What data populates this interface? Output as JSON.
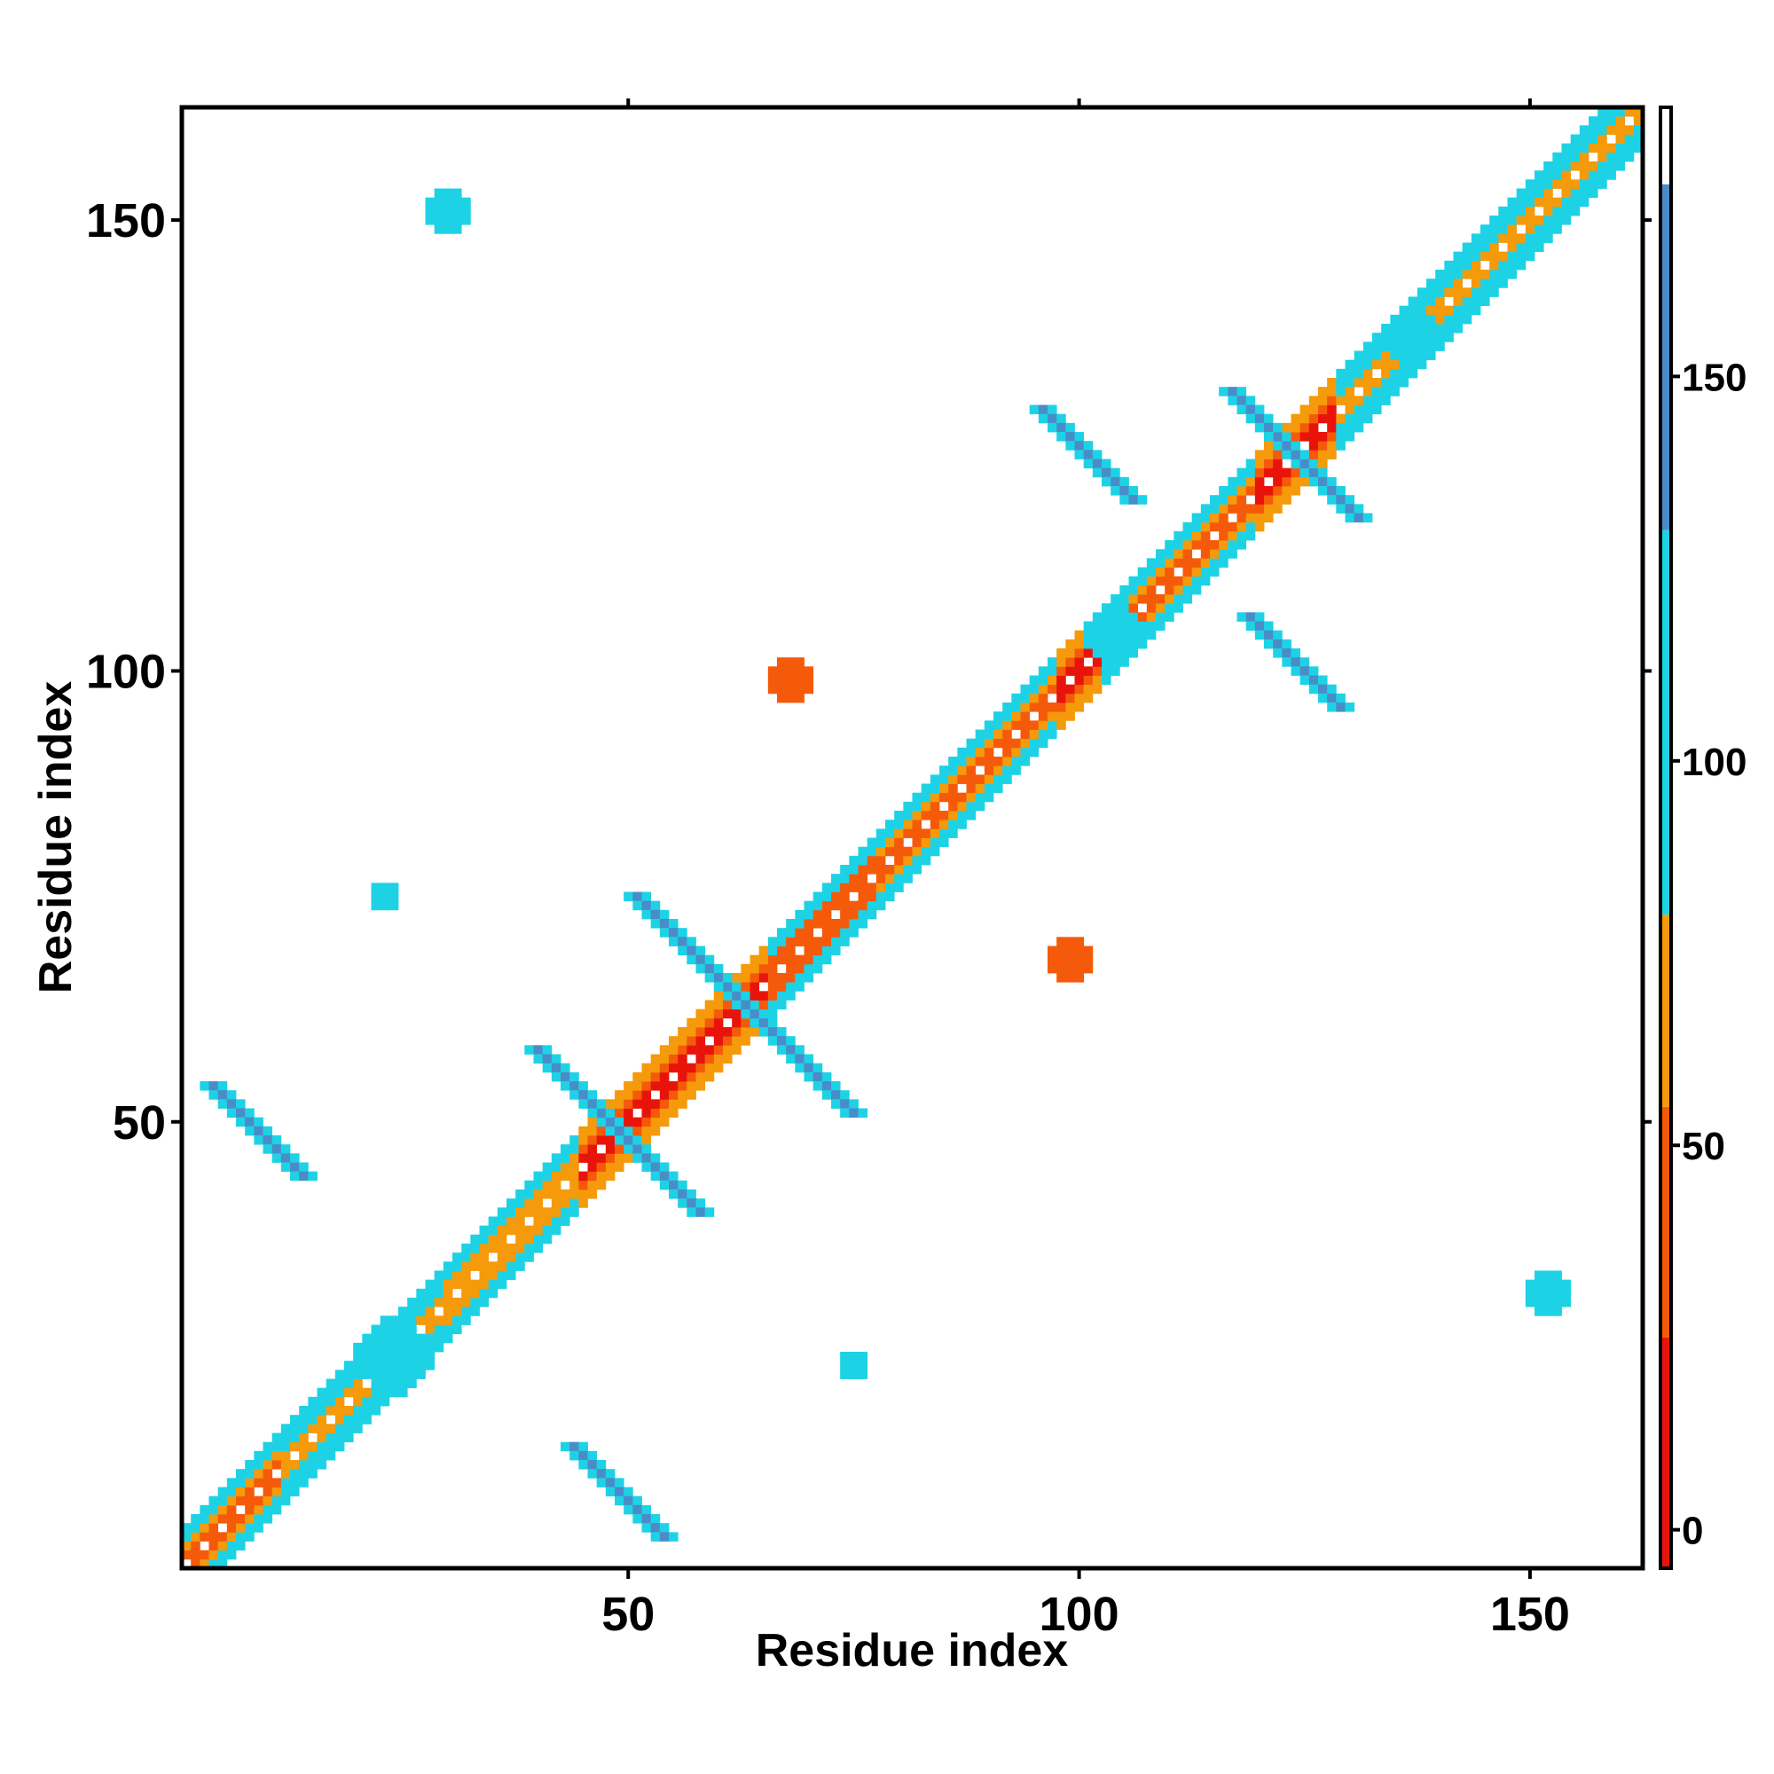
{
  "chart_data": {
    "type": "heatmap",
    "xlabel": "Residue index",
    "ylabel": "Residue index",
    "xlim": [
      1,
      162
    ],
    "ylim": [
      1,
      162
    ],
    "x_ticks": [
      50,
      100,
      150
    ],
    "y_ticks": [
      50,
      100,
      150
    ],
    "grid": false,
    "colorbar": {
      "position": "right",
      "range": [
        -5,
        185
      ],
      "ticks": [
        0,
        50,
        100,
        150
      ],
      "bands": [
        {
          "from": -5,
          "to": 25,
          "color": "#e8140c"
        },
        {
          "from": 25,
          "to": 55,
          "color": "#f55a0a"
        },
        {
          "from": 55,
          "to": 80,
          "color": "#f59a0a"
        },
        {
          "from": 80,
          "to": 130,
          "color": "#1ed2e6"
        },
        {
          "from": 130,
          "to": 175,
          "color": "#4a8cc8"
        },
        {
          "from": 175,
          "to": 185,
          "color": "#ffffff"
        }
      ]
    },
    "regions": [
      {
        "kind": "diagonal_helix",
        "from": 1,
        "to": 12,
        "value": 40
      },
      {
        "kind": "diagonal_helix",
        "from": 12,
        "to": 30,
        "value": 60
      },
      {
        "kind": "diagonal_helix",
        "from": 30,
        "to": 45,
        "value": 55
      },
      {
        "kind": "diagonal_helix",
        "from": 45,
        "to": 66,
        "value": 15
      },
      {
        "kind": "diagonal_helix",
        "from": 66,
        "to": 78,
        "value": 30
      },
      {
        "kind": "diagonal_helix",
        "from": 78,
        "to": 98,
        "value": 45
      },
      {
        "kind": "diagonal_helix",
        "from": 98,
        "to": 103,
        "value": 15
      },
      {
        "kind": "diagonal_helix",
        "from": 103,
        "to": 120,
        "value": 50
      },
      {
        "kind": "diagonal_helix",
        "from": 120,
        "to": 129,
        "value": 10
      },
      {
        "kind": "diagonal_helix",
        "from": 129,
        "to": 162,
        "value": 60
      },
      {
        "kind": "anti_strand",
        "cx": 49,
        "cy": 49,
        "half": 9,
        "value": 155
      },
      {
        "kind": "anti_strand",
        "cx": 63,
        "cy": 63,
        "half": 12,
        "value": 155
      },
      {
        "kind": "anti_strand",
        "cx": 124,
        "cy": 124,
        "half": 7,
        "value": 155
      },
      {
        "kind": "anti_strand",
        "cx": 9,
        "cy": 49,
        "half": 5,
        "value": 150
      },
      {
        "kind": "anti_strand",
        "cx": 49,
        "cy": 9,
        "half": 5,
        "value": 150
      },
      {
        "kind": "anti_strand",
        "cx": 101,
        "cy": 124,
        "half": 5,
        "value": 150
      },
      {
        "kind": "anti_strand",
        "cx": 124,
        "cy": 101,
        "half": 5,
        "value": 150
      },
      {
        "kind": "blob",
        "cx": 24,
        "cy": 24,
        "r": 4,
        "value": 110
      },
      {
        "kind": "blob",
        "cx": 104,
        "cy": 104,
        "r": 3,
        "value": 110
      },
      {
        "kind": "blob",
        "cx": 137,
        "cy": 137,
        "r": 3,
        "value": 110
      },
      {
        "kind": "blob",
        "cx": 30,
        "cy": 151,
        "r": 2,
        "value": 105
      },
      {
        "kind": "blob",
        "cx": 152,
        "cy": 31,
        "r": 2,
        "value": 105
      },
      {
        "kind": "blob",
        "cx": 68,
        "cy": 99,
        "r": 2,
        "value": 35
      },
      {
        "kind": "blob",
        "cx": 99,
        "cy": 68,
        "r": 2,
        "value": 35
      },
      {
        "kind": "blob",
        "cx": 23,
        "cy": 75,
        "r": 1,
        "value": 100
      },
      {
        "kind": "blob",
        "cx": 75,
        "cy": 23,
        "r": 1,
        "value": 100
      }
    ]
  }
}
